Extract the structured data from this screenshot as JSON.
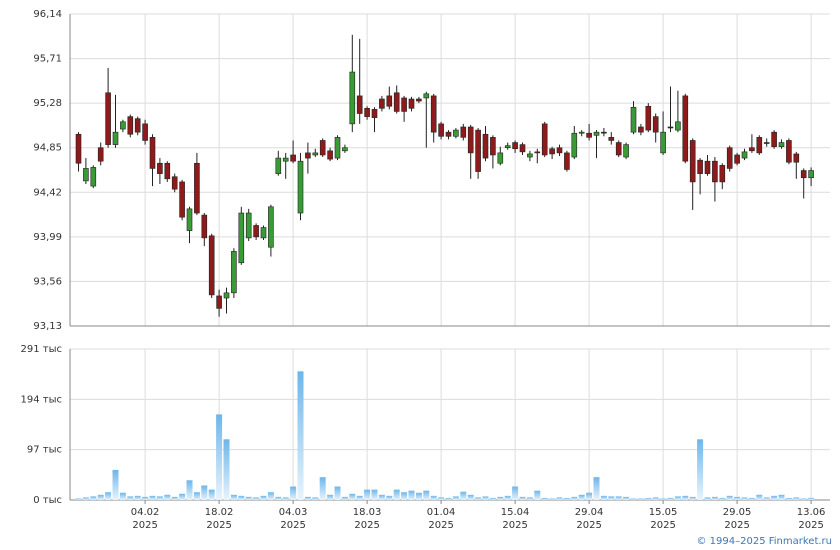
{
  "chart_data": [
    {
      "type": "candlestick",
      "up_color": "#3a9a35",
      "down_color": "#8e1b1b",
      "ylim": [
        93.13,
        96.14
      ],
      "yticks": [
        {
          "value": 96.14,
          "label": "96,14"
        },
        {
          "value": 95.71,
          "label": "95,71"
        },
        {
          "value": 95.28,
          "label": "95,28"
        },
        {
          "value": 94.85,
          "label": "94,85"
        },
        {
          "value": 94.42,
          "label": "94,42"
        },
        {
          "value": 93.99,
          "label": "93,99"
        },
        {
          "value": 93.56,
          "label": "93,56"
        },
        {
          "value": 93.13,
          "label": "93,13"
        }
      ],
      "grid": true,
      "open": [
        94.98,
        94.53,
        94.48,
        94.85,
        95.38,
        94.88,
        95.03,
        95.15,
        95.13,
        95.08,
        94.95,
        94.7,
        94.7,
        94.57,
        94.52,
        94.05,
        94.7,
        94.2,
        94.0,
        93.42,
        93.4,
        93.45,
        93.74,
        93.98,
        94.1,
        93.98,
        93.89,
        94.6,
        94.72,
        94.78,
        94.22,
        94.8,
        94.78,
        94.92,
        94.82,
        94.75,
        94.82,
        95.08,
        95.35,
        95.23,
        95.22,
        95.32,
        95.35,
        95.38,
        95.33,
        95.32,
        95.32,
        95.33,
        95.35,
        95.08,
        95.0,
        94.96,
        95.05,
        95.05,
        95.02,
        94.98,
        94.95,
        94.7,
        94.85,
        94.9,
        94.88,
        94.76,
        94.81,
        95.08,
        94.84,
        94.85,
        94.8,
        94.76,
        94.99,
        94.99,
        94.97,
        95.0,
        94.95,
        94.9,
        94.76,
        95.0,
        95.05,
        95.25,
        95.15,
        94.8,
        95.05,
        95.02,
        95.35,
        94.92,
        94.73,
        94.72,
        94.72,
        94.68,
        94.85,
        94.78,
        94.75,
        94.85,
        94.95,
        94.9,
        95.0,
        94.86,
        94.92,
        94.79,
        94.63,
        94.56
      ],
      "high": [
        95.0,
        94.75,
        94.68,
        94.9,
        95.62,
        95.36,
        95.12,
        95.17,
        95.15,
        95.12,
        94.98,
        94.75,
        94.72,
        94.6,
        94.54,
        94.28,
        94.8,
        94.22,
        94.02,
        93.48,
        93.5,
        93.88,
        94.28,
        94.26,
        94.12,
        94.1,
        94.3,
        94.82,
        94.8,
        94.92,
        94.8,
        94.9,
        94.84,
        94.94,
        94.85,
        94.97,
        94.88,
        95.94,
        95.9,
        95.25,
        95.24,
        95.35,
        95.44,
        95.45,
        95.35,
        95.34,
        95.34,
        95.39,
        95.37,
        95.1,
        95.02,
        95.04,
        95.08,
        95.07,
        95.04,
        95.06,
        94.97,
        94.86,
        94.9,
        94.92,
        94.9,
        94.82,
        94.84,
        95.1,
        94.86,
        94.88,
        94.82,
        95.06,
        95.02,
        95.08,
        95.02,
        95.04,
        95.0,
        94.92,
        94.9,
        95.3,
        95.08,
        95.28,
        95.18,
        95.2,
        95.44,
        95.4,
        95.37,
        94.94,
        94.75,
        94.78,
        94.76,
        94.7,
        94.87,
        94.8,
        94.84,
        94.98,
        94.97,
        94.94,
        95.02,
        94.93,
        94.94,
        94.81,
        94.65,
        94.66
      ],
      "low": [
        94.62,
        94.5,
        94.46,
        94.68,
        94.85,
        94.85,
        95.0,
        94.95,
        94.97,
        94.88,
        94.48,
        94.5,
        94.52,
        94.42,
        94.15,
        93.93,
        94.2,
        93.9,
        93.4,
        93.22,
        93.25,
        93.4,
        93.72,
        93.95,
        93.96,
        93.96,
        93.8,
        94.58,
        94.55,
        94.7,
        94.15,
        94.6,
        94.76,
        94.76,
        94.72,
        94.73,
        94.8,
        95.0,
        95.08,
        95.12,
        95.0,
        95.2,
        95.22,
        95.18,
        95.1,
        95.2,
        95.28,
        94.85,
        94.9,
        94.93,
        94.93,
        94.94,
        94.92,
        94.55,
        94.55,
        94.72,
        94.65,
        94.68,
        94.83,
        94.8,
        94.78,
        94.72,
        94.7,
        94.76,
        94.74,
        94.77,
        94.62,
        94.74,
        94.96,
        94.92,
        94.75,
        94.96,
        94.88,
        94.76,
        94.74,
        94.98,
        94.97,
        95.0,
        94.9,
        94.78,
        95.0,
        95.0,
        94.7,
        94.25,
        94.4,
        94.58,
        94.33,
        94.45,
        94.62,
        94.68,
        94.73,
        94.8,
        94.78,
        94.86,
        94.84,
        94.84,
        94.69,
        94.55,
        94.36,
        94.48
      ],
      "close": [
        94.7,
        94.65,
        94.66,
        94.72,
        94.88,
        95.0,
        95.1,
        94.98,
        95.0,
        94.92,
        94.65,
        94.6,
        94.55,
        94.45,
        94.18,
        94.26,
        94.22,
        93.98,
        93.43,
        93.3,
        93.45,
        93.85,
        94.22,
        94.22,
        93.99,
        94.08,
        94.28,
        94.75,
        94.75,
        94.72,
        94.72,
        94.75,
        94.8,
        94.78,
        94.74,
        94.95,
        94.85,
        95.58,
        95.18,
        95.15,
        95.14,
        95.23,
        95.25,
        95.2,
        95.2,
        95.23,
        95.3,
        95.37,
        95.0,
        94.96,
        94.96,
        95.02,
        94.95,
        94.8,
        94.62,
        94.75,
        94.78,
        94.8,
        94.87,
        94.84,
        94.81,
        94.79,
        94.8,
        94.78,
        94.79,
        94.8,
        94.64,
        94.99,
        95.0,
        94.95,
        95.0,
        95.0,
        94.92,
        94.78,
        94.88,
        95.24,
        95.0,
        95.02,
        95.0,
        95.0,
        95.05,
        95.1,
        94.72,
        94.52,
        94.6,
        94.6,
        94.52,
        94.52,
        94.65,
        94.7,
        94.81,
        94.82,
        94.8,
        94.9,
        94.86,
        94.9,
        94.71,
        94.71,
        94.56,
        94.63
      ]
    },
    {
      "type": "bar",
      "color": "#74bdee",
      "ylim": [
        0,
        291
      ],
      "yticks": [
        {
          "value": 291,
          "label": "291 тыс"
        },
        {
          "value": 194,
          "label": "194 тыс"
        },
        {
          "value": 97,
          "label": "97 тыс"
        },
        {
          "value": 0,
          "label": "0 тыс"
        }
      ],
      "grid": true,
      "categories": [
        null,
        null,
        null,
        null,
        null,
        null,
        null,
        null,
        null,
        "04.02 2025",
        null,
        null,
        null,
        null,
        null,
        null,
        null,
        null,
        null,
        "18.02 2025",
        null,
        null,
        null,
        null,
        null,
        null,
        null,
        null,
        null,
        "04.03 2025",
        null,
        null,
        null,
        null,
        null,
        null,
        null,
        null,
        null,
        "18.03 2025",
        null,
        null,
        null,
        null,
        null,
        null,
        null,
        null,
        null,
        "01.04 2025",
        null,
        null,
        null,
        null,
        null,
        null,
        null,
        null,
        null,
        "15.04 2025",
        null,
        null,
        null,
        null,
        null,
        null,
        null,
        null,
        null,
        "29.04 2025",
        null,
        null,
        null,
        null,
        null,
        null,
        null,
        null,
        null,
        "15.05 2025",
        null,
        null,
        null,
        null,
        null,
        null,
        null,
        null,
        null,
        "29.05 2025",
        null,
        null,
        null,
        null,
        null,
        null,
        null,
        null,
        null,
        "13.06 2025"
      ],
      "values": [
        3,
        5,
        7,
        10,
        15,
        58,
        14,
        7,
        8,
        6,
        8,
        7,
        10,
        6,
        12,
        38,
        15,
        28,
        20,
        165,
        117,
        10,
        8,
        6,
        5,
        8,
        15,
        6,
        5,
        26,
        248,
        6,
        5,
        44,
        10,
        26,
        6,
        12,
        8,
        20,
        20,
        10,
        8,
        20,
        15,
        18,
        14,
        18,
        8,
        5,
        4,
        7,
        16,
        10,
        5,
        7,
        4,
        6,
        8,
        26,
        6,
        5,
        18,
        4,
        3,
        5,
        4,
        6,
        10,
        14,
        44,
        8,
        7,
        7,
        6,
        3,
        3,
        4,
        5,
        3,
        4,
        7,
        8,
        6,
        117,
        5,
        6,
        4,
        8,
        6,
        5,
        4,
        10,
        5,
        8,
        10,
        4,
        5,
        3,
        4
      ]
    }
  ],
  "footer": "© 1994–2025 Finmarket.ru"
}
